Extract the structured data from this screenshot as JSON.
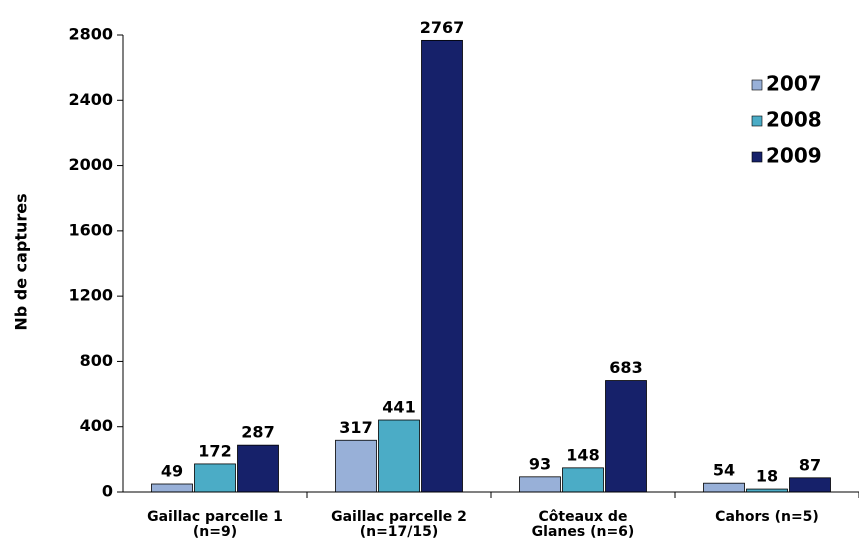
{
  "chart_data": {
    "type": "bar",
    "y_label": "Nb de captures",
    "categories": [
      "Gaillac parcelle 1 (n=9)",
      "Gaillac parcelle 2 (n=17/15)",
      "Côteaux de Glanes (n=6)",
      "Cahors (n=5)"
    ],
    "series": [
      {
        "name": "2007",
        "color": "#98b0d8",
        "values": [
          49,
          317,
          93,
          54
        ]
      },
      {
        "name": "2008",
        "color": "#4bacc6",
        "values": [
          172,
          441,
          148,
          18
        ]
      },
      {
        "name": "2009",
        "color": "#16216a",
        "values": [
          287,
          2767,
          683,
          87
        ]
      }
    ],
    "ylim": [
      0,
      2800
    ],
    "yticks": [
      0,
      400,
      800,
      1200,
      1600,
      2000,
      2400,
      2800
    ],
    "legend": "upper right"
  }
}
